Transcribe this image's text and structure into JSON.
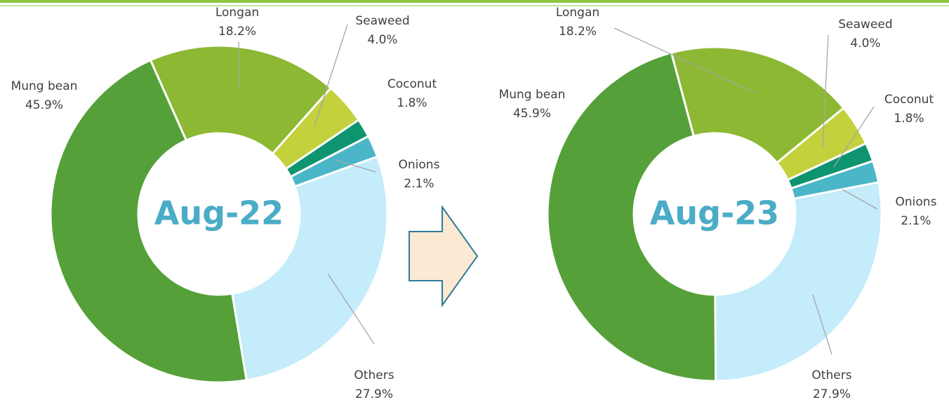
{
  "chart_data": [
    {
      "type": "donut",
      "title": "Aug-22",
      "categories": [
        "Longan",
        "Seaweed",
        "Coconut",
        "Onions",
        "Others",
        "Mung bean"
      ],
      "values": [
        18.2,
        4.0,
        1.8,
        2.1,
        27.9,
        45.9
      ],
      "value_labels": [
        "18.2%",
        "4.0%",
        "1.8%",
        "2.1%",
        "27.9%",
        "45.9%"
      ],
      "colors": [
        "#8db833",
        "#c3d13c",
        "#0f9470",
        "#4bb6c8",
        "#c4ecfa",
        "#55a039"
      ]
    },
    {
      "type": "donut",
      "title": "Aug-23",
      "categories": [
        "Longan",
        "Seaweed",
        "Coconut",
        "Onions",
        "Others",
        "Mung bean"
      ],
      "values": [
        18.2,
        4.0,
        1.8,
        2.1,
        27.9,
        45.9
      ],
      "value_labels": [
        "18.2%",
        "4.0%",
        "1.8%",
        "2.1%",
        "27.9%",
        "45.9%"
      ],
      "colors": [
        "#8db833",
        "#c3d13c",
        "#0f9470",
        "#4bb6c8",
        "#c4ecfa",
        "#55a039"
      ]
    }
  ]
}
